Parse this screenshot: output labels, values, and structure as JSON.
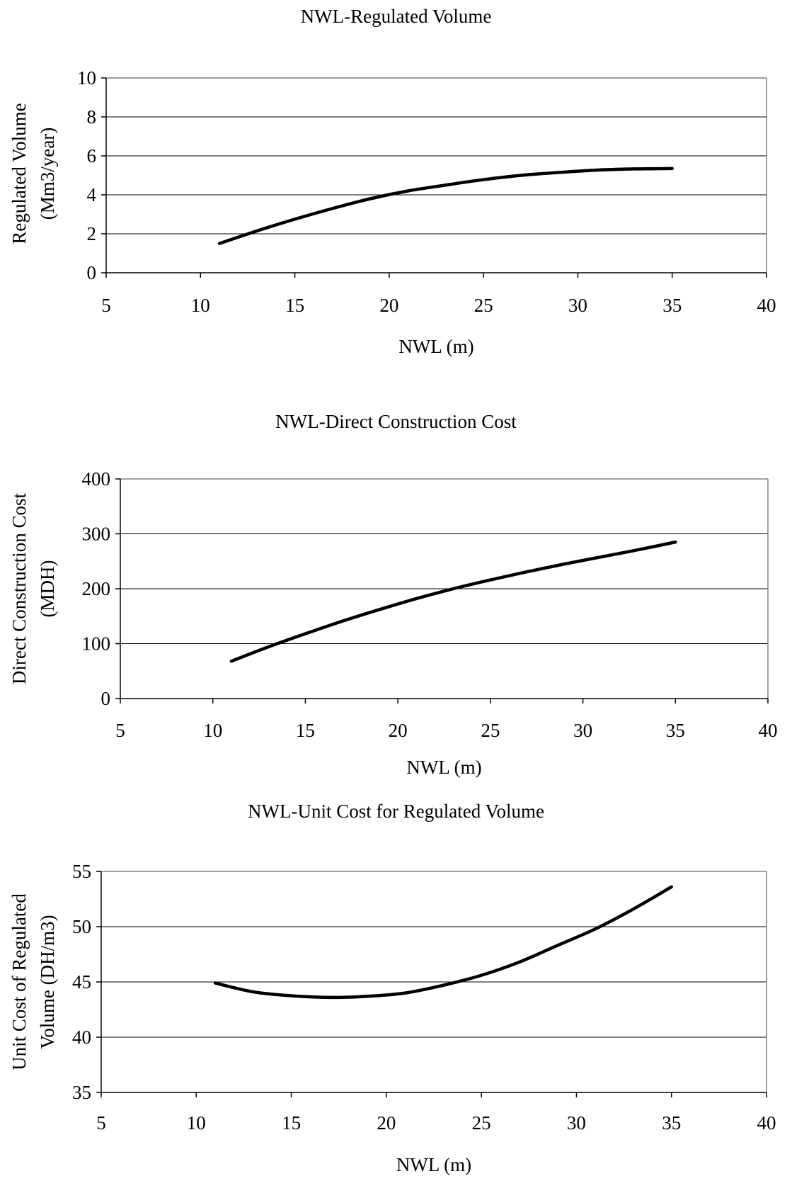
{
  "charts": [
    {
      "title": "NWL-Regulated Volume",
      "xlabel": "NWL (m)",
      "ylabel_lines": [
        "Regulated Volume",
        "(Mm3/year)"
      ]
    },
    {
      "title": "NWL-Direct Construction Cost",
      "xlabel": "NWL (m)",
      "ylabel_lines": [
        "Direct Construction Cost",
        "(MDH)"
      ]
    },
    {
      "title": "NWL-Unit Cost for Regulated Volume",
      "xlabel": "NWL (m)",
      "ylabel_lines": [
        "Unit Cost of Regulated",
        "Volume (DH/m3)"
      ]
    }
  ],
  "chart_data": [
    {
      "type": "line",
      "title": "NWL-Regulated Volume",
      "xlabel": "NWL (m)",
      "ylabel": "Regulated Volume (Mm3/year)",
      "xlim": [
        5,
        40
      ],
      "ylim": [
        0,
        10
      ],
      "xticks": [
        5,
        10,
        15,
        20,
        25,
        30,
        35,
        40
      ],
      "yticks": [
        0,
        2,
        4,
        6,
        8,
        10
      ],
      "grid": "horizontal",
      "series": [
        {
          "x": [
            11,
            13,
            15,
            17,
            19,
            21,
            23,
            25,
            27,
            29,
            31,
            33,
            35
          ],
          "y": [
            1.5,
            2.15,
            2.75,
            3.3,
            3.8,
            4.2,
            4.5,
            4.78,
            5.0,
            5.15,
            5.27,
            5.33,
            5.35
          ]
        }
      ]
    },
    {
      "type": "line",
      "title": "NWL-Direct Construction Cost",
      "xlabel": "NWL (m)",
      "ylabel": "Direct Construction Cost (MDH)",
      "xlim": [
        5,
        40
      ],
      "ylim": [
        0,
        400
      ],
      "xticks": [
        5,
        10,
        15,
        20,
        25,
        30,
        35,
        40
      ],
      "yticks": [
        0,
        100,
        200,
        300,
        400
      ],
      "grid": "horizontal",
      "series": [
        {
          "x": [
            11,
            13,
            15,
            17,
            19,
            21,
            23,
            25,
            27,
            29,
            31,
            33,
            35
          ],
          "y": [
            68,
            94,
            118,
            141,
            162,
            182,
            200,
            216,
            231,
            245,
            258,
            271,
            285
          ]
        }
      ]
    },
    {
      "type": "line",
      "title": "NWL-Unit Cost for Regulated Volume",
      "xlabel": "NWL (m)",
      "ylabel": "Unit Cost of Regulated Volume (DH/m3)",
      "xlim": [
        5,
        40
      ],
      "ylim": [
        35,
        55
      ],
      "xticks": [
        5,
        10,
        15,
        20,
        25,
        30,
        35,
        40
      ],
      "yticks": [
        35,
        40,
        45,
        50,
        55
      ],
      "grid": "horizontal",
      "series": [
        {
          "x": [
            11,
            13,
            15,
            17,
            19,
            21,
            23,
            25,
            27,
            29,
            31,
            33,
            35
          ],
          "y": [
            44.9,
            44.1,
            43.75,
            43.6,
            43.7,
            44.0,
            44.7,
            45.6,
            46.8,
            48.3,
            49.8,
            51.6,
            53.6
          ]
        }
      ]
    }
  ]
}
